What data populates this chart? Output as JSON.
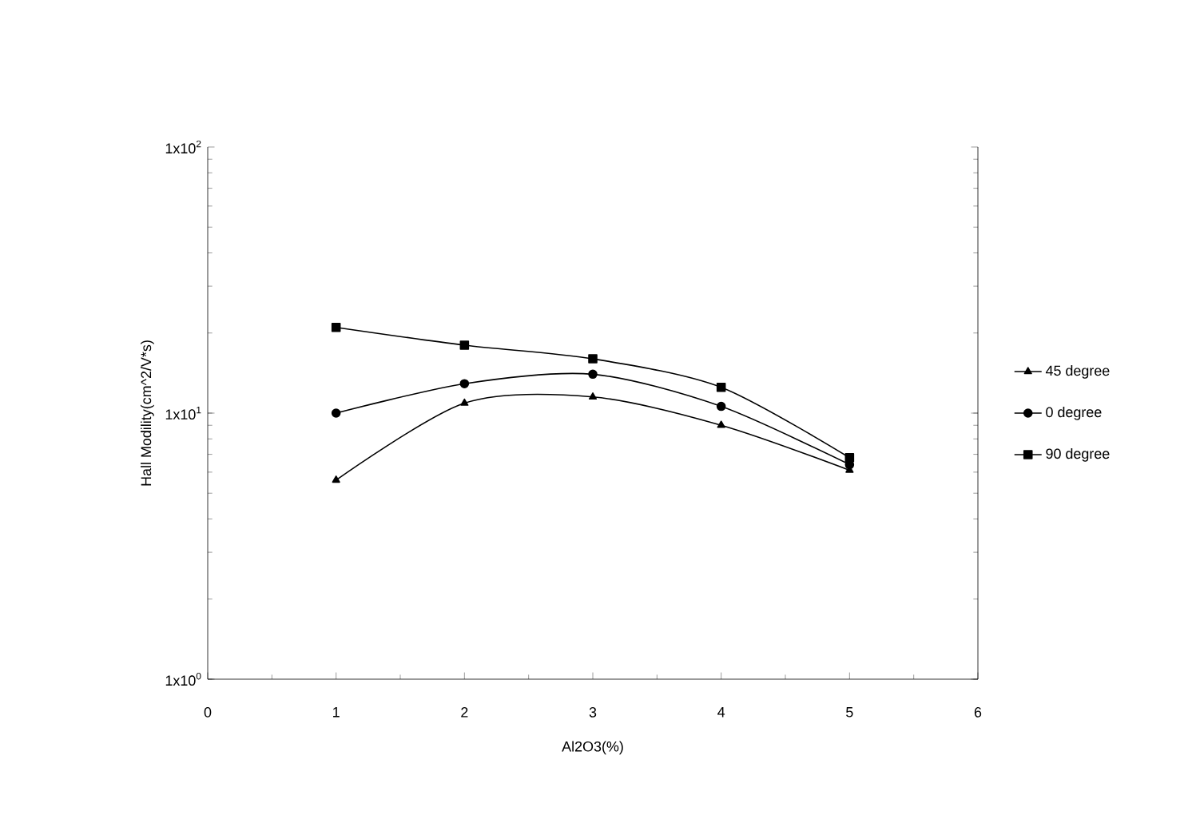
{
  "chart_data": {
    "type": "line",
    "xlabel": "Al2O3(%)",
    "ylabel": "Hall Modility(cm^2/V*s)",
    "log": "y",
    "x": [
      1,
      2,
      3,
      4,
      5
    ],
    "series": [
      {
        "name": "45 degree",
        "color": "#000000",
        "marker": "triangle",
        "values": [
          5.6,
          10.9,
          11.5,
          9.0,
          6.1
        ]
      },
      {
        "name": "0 degree",
        "color": "#000000",
        "marker": "circle",
        "values": [
          10,
          12.9,
          14,
          10.6,
          6.4
        ]
      },
      {
        "name": "90  degree",
        "color": "#000000",
        "marker": "square",
        "values": [
          21,
          18,
          16,
          12.5,
          6.8
        ]
      }
    ],
    "xlim": [
      0,
      6
    ],
    "xticks": [
      0,
      1,
      2,
      3,
      4,
      5,
      6
    ],
    "ylim": [
      1,
      100
    ],
    "yticks": [
      {
        "value": 1,
        "label": "1x10$^{0}$"
      },
      {
        "value": 10,
        "label": "1x10$^{1}$"
      },
      {
        "value": 100,
        "label": "1x10$^{2}$"
      }
    ],
    "grid": false,
    "legend": "right",
    "line_style": "solid"
  }
}
